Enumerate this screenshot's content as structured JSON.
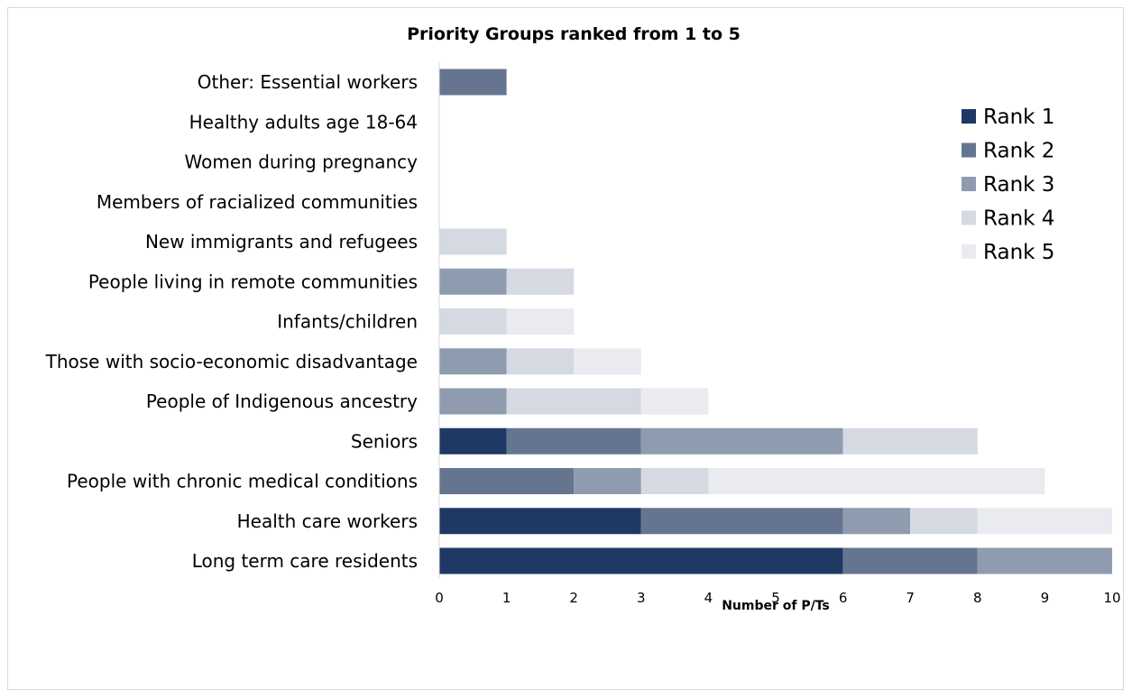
{
  "chart_data": {
    "type": "bar",
    "orientation": "horizontal",
    "stacked": true,
    "title": "Priority Groups ranked from 1 to 5",
    "xlabel": "Number of P/Ts",
    "ylabel": "",
    "xlim": [
      0,
      10
    ],
    "xticks": [
      "0",
      "1",
      "2",
      "3",
      "4",
      "5",
      "6",
      "7",
      "8",
      "9",
      "10"
    ],
    "grid": false,
    "legend_position": "top-right",
    "categories": [
      "Other: Essential workers",
      "Healthy adults age 18-64",
      "Women during pregnancy",
      "Members of racialized communities",
      "New immigrants and refugees",
      "People living in remote communities",
      "Infants/children",
      "Those with socio-economic disadvantage",
      "People of Indigenous ancestry",
      "Seniors",
      "People with chronic medical conditions",
      "Health care workers",
      "Long term care residents"
    ],
    "series": [
      {
        "name": "Rank 1",
        "color": "#1f3864",
        "values": [
          0,
          0,
          0,
          0,
          0,
          0,
          0,
          0,
          0,
          1,
          0,
          3,
          6
        ]
      },
      {
        "name": "Rank 2",
        "color": "#66758f",
        "values": [
          1,
          0,
          0,
          0,
          0,
          0,
          0,
          0,
          0,
          2,
          2,
          3,
          2
        ]
      },
      {
        "name": "Rank 3",
        "color": "#8f9cb0",
        "values": [
          0,
          0,
          0,
          0,
          0,
          1,
          0,
          1,
          1,
          3,
          1,
          1,
          2
        ]
      },
      {
        "name": "Rank 4",
        "color": "#d5d9e2",
        "values": [
          0,
          0,
          0,
          0,
          1,
          1,
          1,
          1,
          2,
          2,
          1,
          1,
          0
        ]
      },
      {
        "name": "Rank 5",
        "color": "#e9ebf1",
        "values": [
          0,
          0,
          0,
          0,
          0,
          0,
          1,
          1,
          1,
          0,
          5,
          2,
          0
        ]
      }
    ]
  }
}
